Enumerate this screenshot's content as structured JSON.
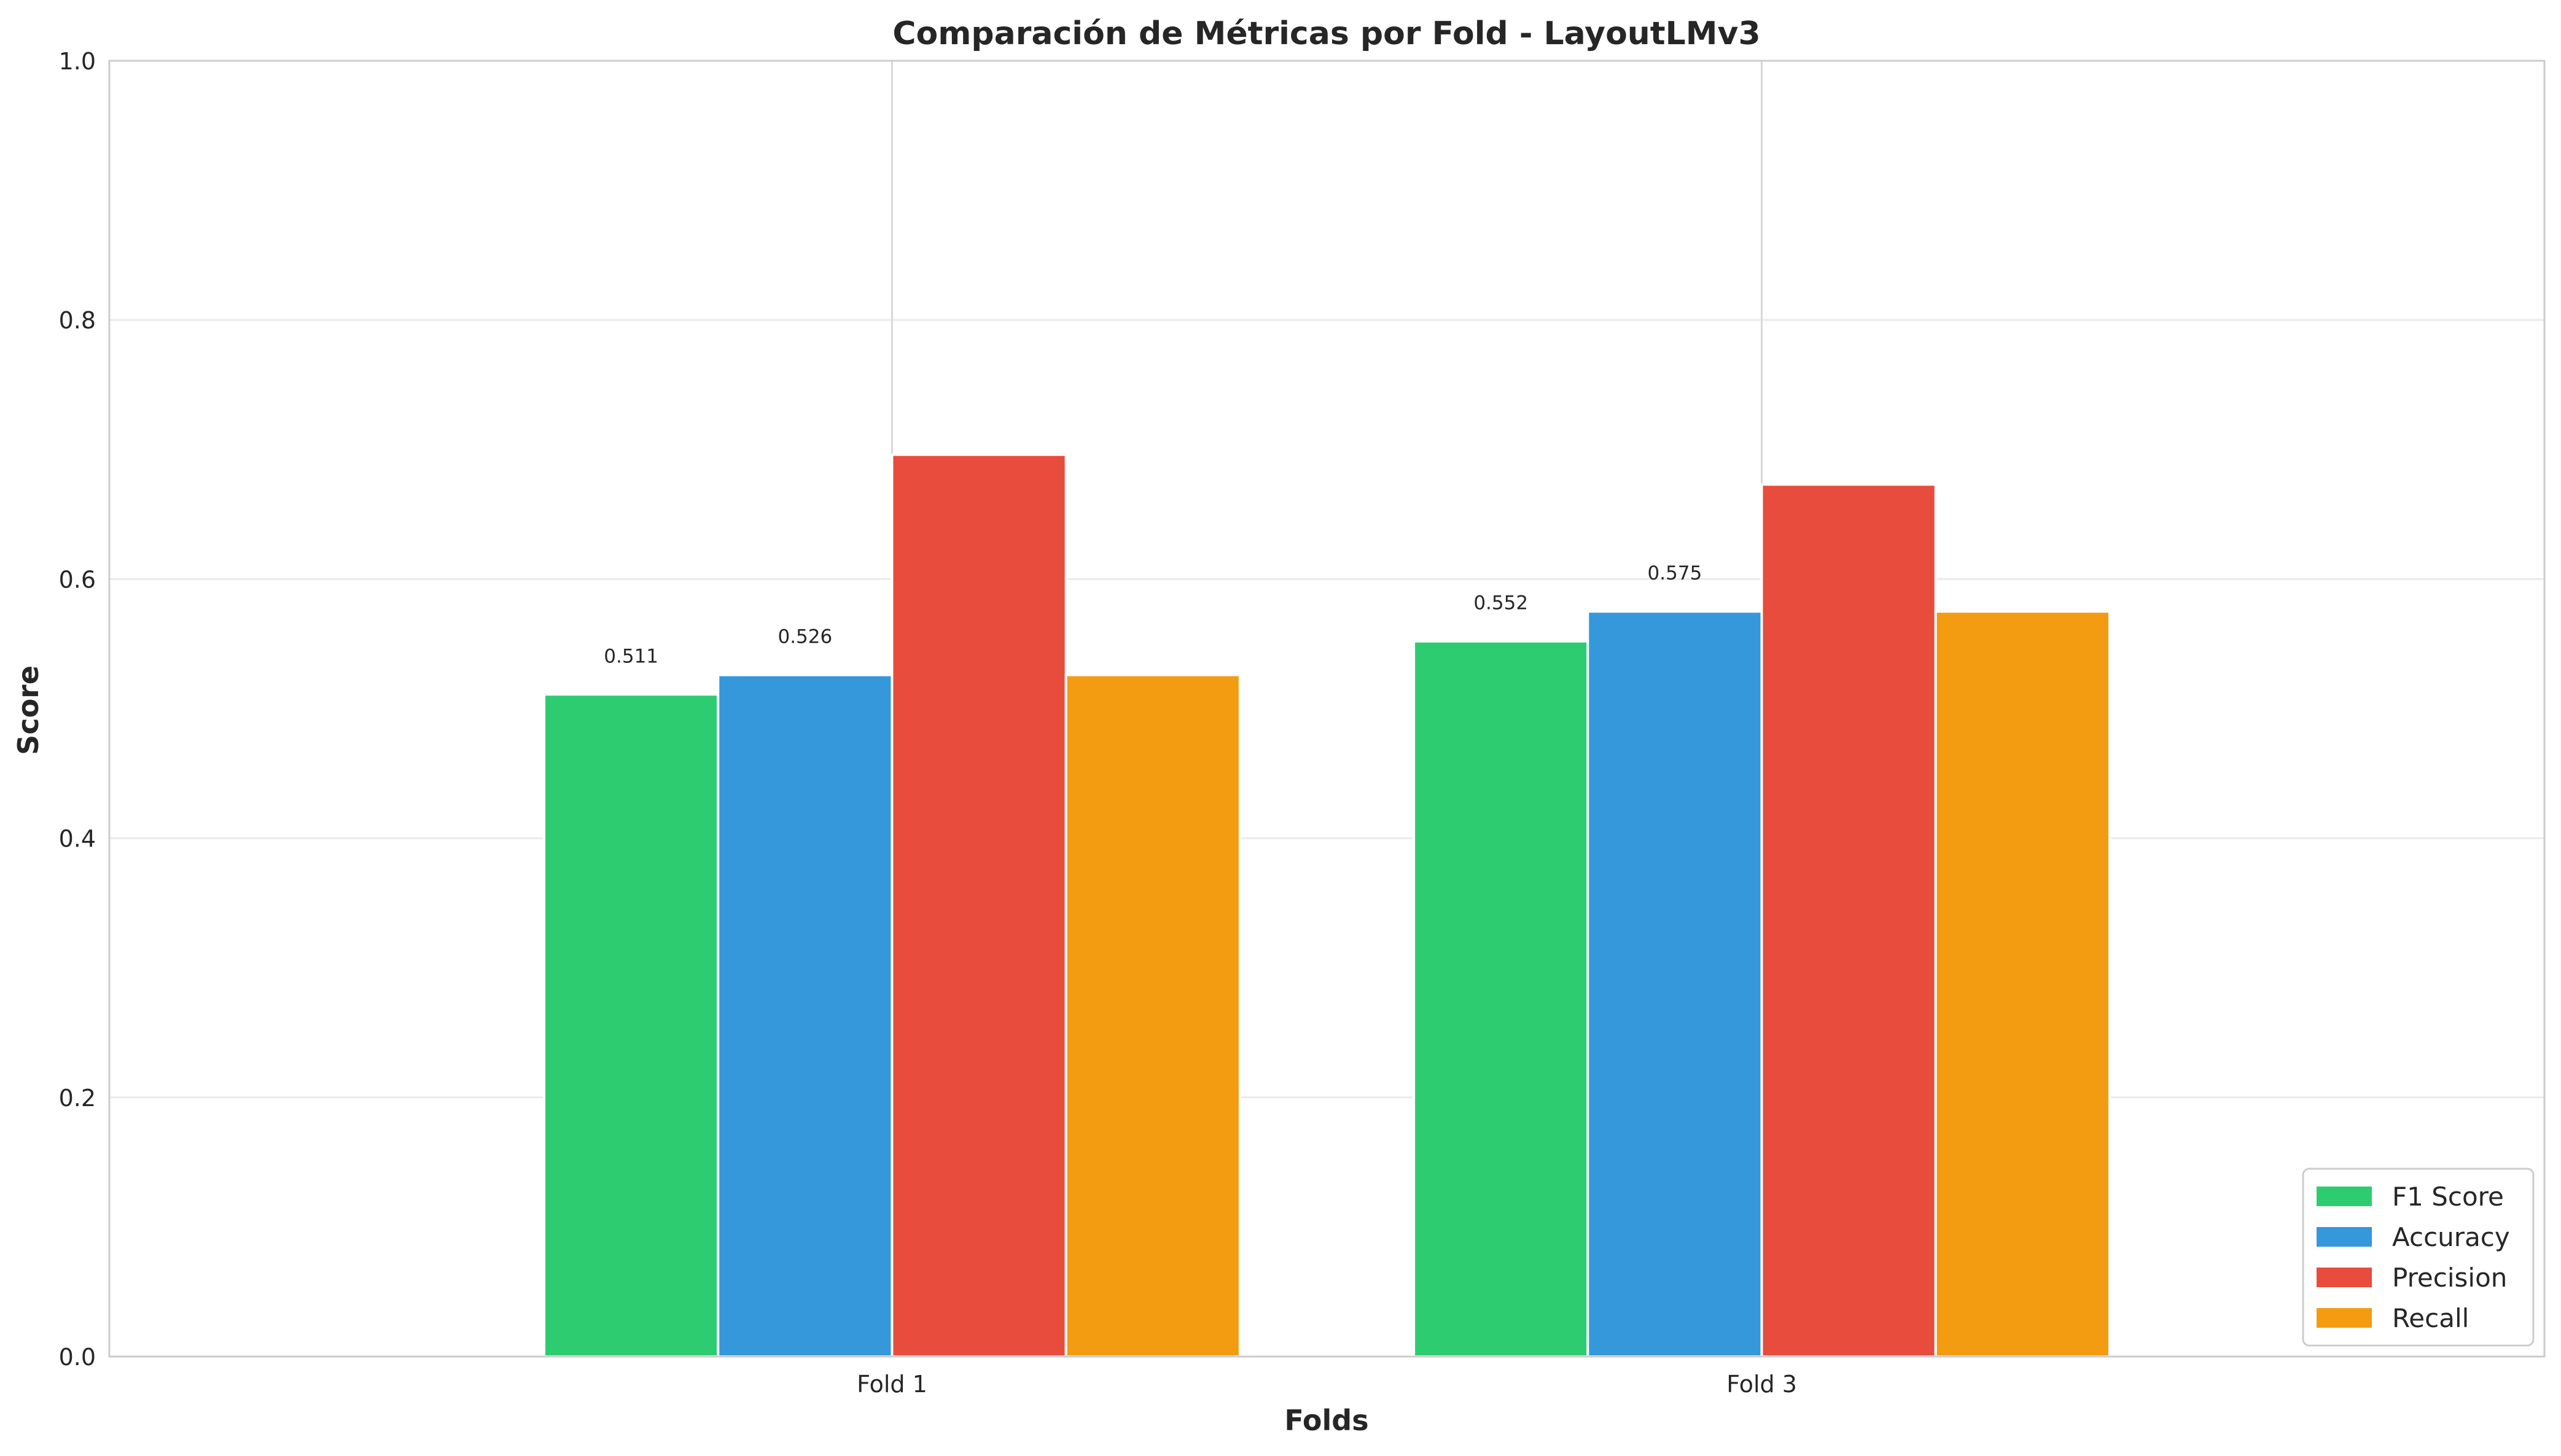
{
  "chart_data": {
    "type": "bar",
    "title": "Comparación de Métricas por Fold - LayoutLMv3",
    "xlabel": "Folds",
    "ylabel": "Score",
    "ylim": [
      0,
      1.0
    ],
    "yticks": [
      "0.0",
      "0.2",
      "0.4",
      "0.6",
      "0.8",
      "1.0"
    ],
    "categories": [
      "Fold 1",
      "Fold 3"
    ],
    "series": [
      {
        "name": "F1 Score",
        "color": "#2ecc71",
        "values": [
          0.511,
          0.552
        ],
        "value_labels": [
          "0.511",
          "0.552"
        ]
      },
      {
        "name": "Accuracy",
        "color": "#3498db",
        "values": [
          0.526,
          0.575
        ],
        "value_labels": [
          "0.526",
          "0.575"
        ]
      },
      {
        "name": "Precision",
        "color": "#e74c3c",
        "values": [
          0.696,
          0.673
        ],
        "value_labels": [
          null,
          null
        ]
      },
      {
        "name": "Recall",
        "color": "#f39c12",
        "values": [
          0.526,
          0.575
        ],
        "value_labels": [
          null,
          null
        ]
      }
    ],
    "grid": true,
    "legend_position": "lower-right"
  }
}
